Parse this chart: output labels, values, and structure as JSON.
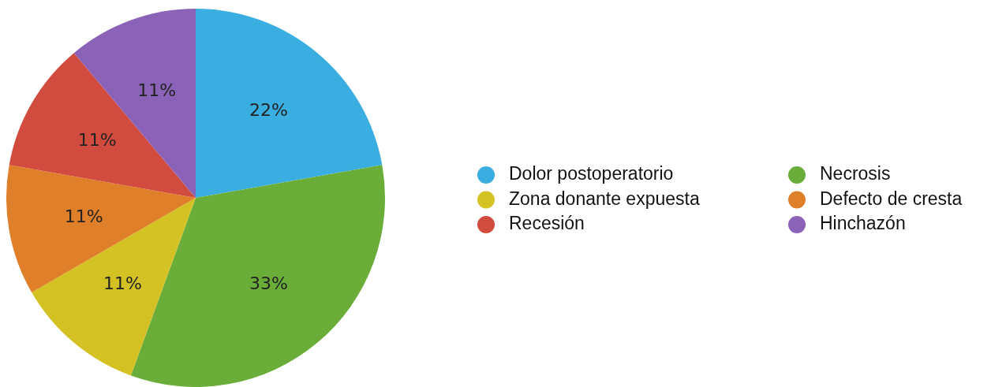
{
  "chart_data": {
    "type": "pie",
    "categories": [
      "Dolor postoperatorio",
      "Necrosis",
      "Zona donante expuesta",
      "Defecto de cresta",
      "Recesión",
      "Hinchazón"
    ],
    "values": [
      22,
      33,
      11,
      11,
      11,
      11
    ],
    "value_labels": [
      "22%",
      "33%",
      "11%",
      "11%",
      "11%",
      "11%"
    ],
    "colors": [
      "#3aaee0",
      "#6aad38",
      "#d4c124",
      "#e07f2a",
      "#d14b3f",
      "#8a62b8"
    ],
    "legend": "right"
  }
}
